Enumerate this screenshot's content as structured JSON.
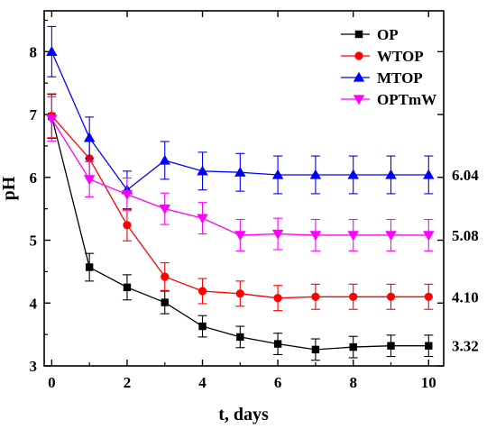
{
  "chart_data": {
    "type": "line",
    "title": "",
    "xlabel": "t, days",
    "ylabel": "pH",
    "xlim": [
      -0.2,
      10.4
    ],
    "ylim": [
      3.0,
      8.65
    ],
    "xticks": [
      0,
      2,
      4,
      6,
      8,
      10
    ],
    "yticks": [
      3,
      4,
      5,
      6,
      7,
      8
    ],
    "xtick_labels": [
      "0",
      "2",
      "4",
      "6",
      "8",
      "10"
    ],
    "ytick_labels": [
      "3",
      "4",
      "5",
      "6",
      "7",
      "8"
    ],
    "grid": false,
    "legend_position": "top-right",
    "x": [
      0,
      1,
      2,
      3,
      4,
      5,
      6,
      7,
      8,
      9,
      10
    ],
    "series": [
      {
        "name": "OP",
        "color": "#000000",
        "marker": "square",
        "values": [
          6.97,
          4.57,
          4.25,
          4.01,
          3.63,
          3.46,
          3.35,
          3.26,
          3.3,
          3.32,
          3.32
        ],
        "errors": [
          0.35,
          0.22,
          0.2,
          0.18,
          0.17,
          0.17,
          0.17,
          0.17,
          0.17,
          0.17,
          0.17
        ],
        "end_label": "3.32"
      },
      {
        "name": "WTOP",
        "color": "#ff0000",
        "marker": "circle",
        "values": [
          6.98,
          6.3,
          5.24,
          4.42,
          4.19,
          4.15,
          4.08,
          4.1,
          4.1,
          4.1,
          4.1
        ],
        "errors": [
          0.35,
          0.28,
          0.25,
          0.22,
          0.2,
          0.2,
          0.2,
          0.2,
          0.2,
          0.2,
          0.2
        ],
        "end_label": "4.10"
      },
      {
        "name": "MTOP",
        "color": "#0000ff",
        "marker": "triangle-up",
        "values": [
          8.0,
          6.63,
          5.8,
          6.27,
          6.1,
          6.08,
          6.04,
          6.04,
          6.04,
          6.04,
          6.04
        ],
        "errors": [
          0.4,
          0.33,
          0.3,
          0.3,
          0.3,
          0.3,
          0.3,
          0.3,
          0.3,
          0.3,
          0.3
        ],
        "end_label": "6.04"
      },
      {
        "name": "OPTmW",
        "color": "#ff00ff",
        "marker": "triangle-down",
        "values": [
          6.93,
          5.97,
          5.73,
          5.5,
          5.35,
          5.08,
          5.1,
          5.08,
          5.08,
          5.08,
          5.08
        ],
        "errors": [
          0.35,
          0.28,
          0.26,
          0.25,
          0.25,
          0.25,
          0.25,
          0.25,
          0.25,
          0.25,
          0.25
        ],
        "end_label": "5.08"
      }
    ]
  }
}
